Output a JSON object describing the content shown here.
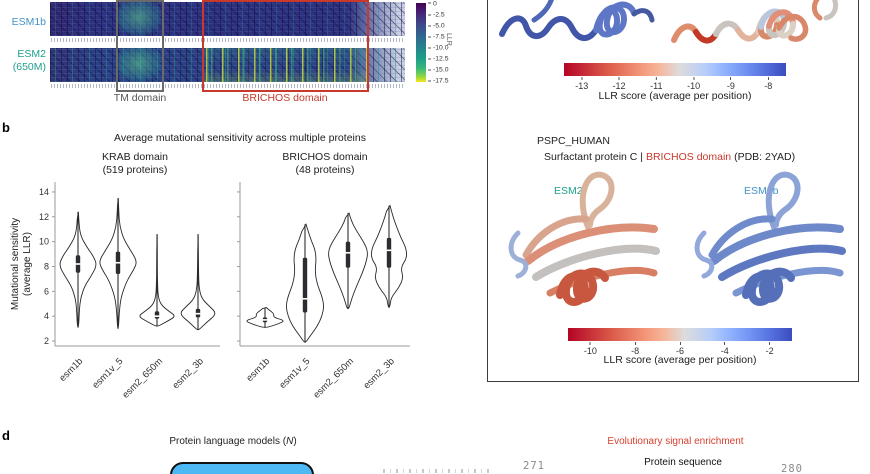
{
  "colors": {
    "esm1b_blue": "#4292c6",
    "esm2_teal": "#1fa08c",
    "accent_red": "#c8392b",
    "violin_palette": [
      "#0173b2",
      "#de8f05",
      "#029e73",
      "#d55e00"
    ]
  },
  "chart_data": [
    {
      "type": "heatmap",
      "rows": [
        {
          "label": "ESM1b"
        },
        {
          "label_line1": "ESM2",
          "label_line2": "(650M)"
        }
      ],
      "annotations": {
        "tm": "TM domain",
        "brichos": "BRICHOS domain"
      },
      "colorbar": {
        "label": "LLR",
        "ticks": [
          "0",
          "-2.5",
          "-5.0",
          "-7.5",
          "-10.0",
          "-12.5",
          "-15.0",
          "-17.5"
        ]
      }
    },
    {
      "type": "violin",
      "title": "Average mutational sensitivity across multiple proteins",
      "ylabel_line1": "Mutational sensitivity",
      "ylabel_line2": "(average LLR)",
      "ylim": [
        1.6,
        14.8
      ],
      "yticks": [
        2,
        4,
        6,
        8,
        10,
        12,
        14
      ],
      "categories": [
        "esm1b",
        "esm1v_5",
        "esm2_650m",
        "esm2_3b"
      ],
      "palette": [
        "#0173b2",
        "#de8f05",
        "#029e73",
        "#d55e00"
      ],
      "subplots": [
        {
          "title_line1": "KRAB domain",
          "title_line2": "(519 proteins)",
          "violins": [
            {
              "name": "esm1b",
              "min": 3.1,
              "max": 12.4,
              "q1": 7.5,
              "q3": 8.9,
              "median": 8.2,
              "profile": [
                [
                  3.1,
                  0.03
                ],
                [
                  4.5,
                  0.07
                ],
                [
                  5.5,
                  0.14
                ],
                [
                  6.5,
                  0.38
                ],
                [
                  7.2,
                  0.68
                ],
                [
                  8.1,
                  1.0
                ],
                [
                  8.8,
                  0.82
                ],
                [
                  9.6,
                  0.45
                ],
                [
                  10.4,
                  0.16
                ],
                [
                  11.2,
                  0.06
                ],
                [
                  12.4,
                  0.02
                ]
              ]
            },
            {
              "name": "esm1v_5",
              "min": 3.0,
              "max": 13.5,
              "q1": 7.4,
              "q3": 9.2,
              "median": 8.3,
              "profile": [
                [
                  3.0,
                  0.02
                ],
                [
                  4.2,
                  0.06
                ],
                [
                  5.5,
                  0.15
                ],
                [
                  6.8,
                  0.45
                ],
                [
                  7.8,
                  0.85
                ],
                [
                  8.4,
                  1.0
                ],
                [
                  9.2,
                  0.7
                ],
                [
                  10.2,
                  0.3
                ],
                [
                  11.2,
                  0.1
                ],
                [
                  12.3,
                  0.04
                ],
                [
                  13.5,
                  0.015
                ]
              ]
            },
            {
              "name": "esm2_650m",
              "min": 3.2,
              "max": 10.6,
              "q1": 3.8,
              "q3": 4.4,
              "median": 4.0,
              "profile": [
                [
                  3.2,
                  0.08
                ],
                [
                  3.6,
                  0.55
                ],
                [
                  4.0,
                  1.0
                ],
                [
                  4.4,
                  0.62
                ],
                [
                  4.9,
                  0.22
                ],
                [
                  5.5,
                  0.07
                ],
                [
                  6.5,
                  0.03
                ],
                [
                  8.0,
                  0.015
                ],
                [
                  10.6,
                  0.01
                ]
              ]
            },
            {
              "name": "esm2_3b",
              "min": 2.9,
              "max": 10.6,
              "q1": 3.9,
              "q3": 4.6,
              "median": 4.2,
              "profile": [
                [
                  2.9,
                  0.06
                ],
                [
                  3.5,
                  0.45
                ],
                [
                  4.2,
                  1.0
                ],
                [
                  4.8,
                  0.6
                ],
                [
                  5.4,
                  0.2
                ],
                [
                  6.2,
                  0.06
                ],
                [
                  7.5,
                  0.025
                ],
                [
                  10.6,
                  0.01
                ]
              ]
            }
          ]
        },
        {
          "title_line1": "BRICHOS domain",
          "title_line2": "(48 proteins)",
          "violins": [
            {
              "name": "esm1b",
              "min": 3.1,
              "max": 4.7,
              "q1": 3.5,
              "q3": 3.9,
              "median": 3.7,
              "profile": [
                [
                  3.1,
                  0.12
                ],
                [
                  3.4,
                  0.7
                ],
                [
                  3.65,
                  1.0
                ],
                [
                  3.9,
                  0.42
                ],
                [
                  4.2,
                  0.45
                ],
                [
                  4.5,
                  0.2
                ],
                [
                  4.7,
                  0.06
                ]
              ]
            },
            {
              "name": "esm1v_5",
              "min": 1.9,
              "max": 11.4,
              "q1": 4.3,
              "q3": 8.7,
              "median": 5.4,
              "profile": [
                [
                  1.9,
                  0.04
                ],
                [
                  2.5,
                  0.3
                ],
                [
                  3.2,
                  0.62
                ],
                [
                  4.0,
                  0.85
                ],
                [
                  4.8,
                  0.95
                ],
                [
                  5.6,
                  0.85
                ],
                [
                  6.6,
                  0.6
                ],
                [
                  7.6,
                  0.5
                ],
                [
                  8.6,
                  0.56
                ],
                [
                  9.4,
                  0.5
                ],
                [
                  10.2,
                  0.28
                ],
                [
                  11.4,
                  0.05
                ]
              ]
            },
            {
              "name": "esm2_650m",
              "min": 4.6,
              "max": 12.3,
              "q1": 7.9,
              "q3": 10.0,
              "median": 9.1,
              "profile": [
                [
                  4.6,
                  0.05
                ],
                [
                  5.4,
                  0.18
                ],
                [
                  6.4,
                  0.42
                ],
                [
                  7.4,
                  0.7
                ],
                [
                  8.4,
                  0.92
                ],
                [
                  9.2,
                  1.0
                ],
                [
                  10.0,
                  0.78
                ],
                [
                  10.8,
                  0.45
                ],
                [
                  11.6,
                  0.18
                ],
                [
                  12.3,
                  0.05
                ]
              ]
            },
            {
              "name": "esm2_3b",
              "min": 4.7,
              "max": 12.9,
              "q1": 7.9,
              "q3": 10.3,
              "median": 9.3,
              "profile": [
                [
                  4.7,
                  0.04
                ],
                [
                  5.5,
                  0.1
                ],
                [
                  6.3,
                  0.5
                ],
                [
                  7.1,
                  0.72
                ],
                [
                  7.9,
                  0.58
                ],
                [
                  8.7,
                  0.9
                ],
                [
                  9.5,
                  0.85
                ],
                [
                  10.3,
                  0.6
                ],
                [
                  11.1,
                  0.4
                ],
                [
                  12.0,
                  0.2
                ],
                [
                  12.9,
                  0.05
                ]
              ]
            }
          ]
        }
      ]
    }
  ],
  "panel_b": {
    "label": "b"
  },
  "right_panel": {
    "colorbar_top": {
      "ticks": [
        "-13",
        "-12",
        "-11",
        "-10",
        "-9",
        "-8"
      ],
      "label": "LLR score (average per position)"
    },
    "protein_id": "PSPC_HUMAN",
    "subtitle_pre": "Surfactant protein C | ",
    "subtitle_red": "BRICHOS domain",
    "subtitle_post": " (PDB: 2YAD)",
    "label_esm2": "ESM2",
    "label_esm1b": "ESM1b",
    "colorbar_bottom": {
      "ticks": [
        "-10",
        "-8",
        "-6",
        "-4",
        "-2"
      ],
      "label": "LLR score (average per position)"
    }
  },
  "panel_d": {
    "label": "d",
    "left_title_pre": "Protein language models (",
    "left_title_n": "N",
    "left_title_post": ")",
    "right_title": "Evolutionary signal enrichment",
    "seq_label": "Protein sequence",
    "num_left": "271",
    "num_right": "280"
  }
}
